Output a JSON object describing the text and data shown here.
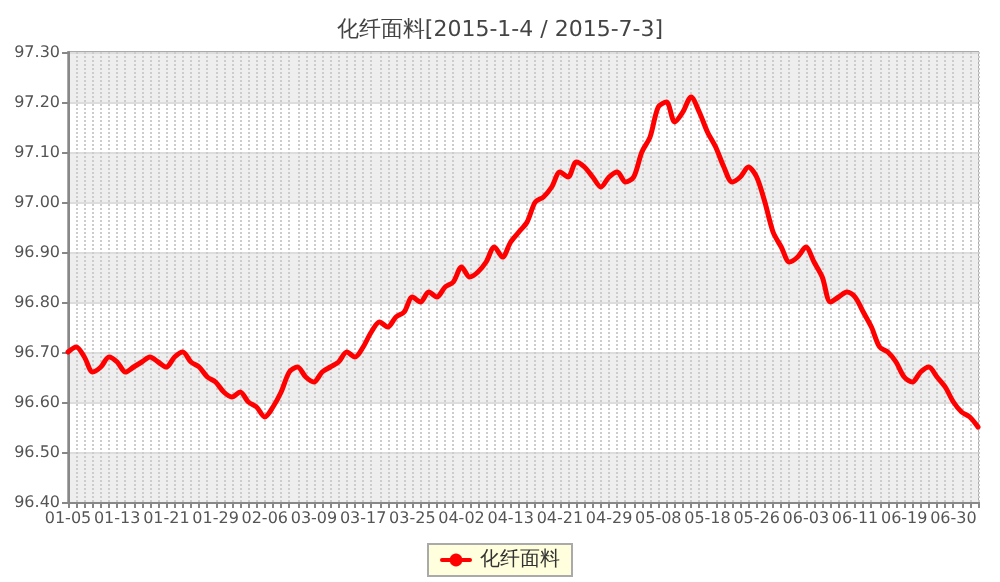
{
  "chart_data": {
    "type": "line",
    "title": "化纤面料[2015-1-4 / 2015-7-3]",
    "categories": [
      "01-05",
      null,
      null,
      null,
      null,
      null,
      "01-13",
      null,
      null,
      null,
      null,
      null,
      "01-21",
      null,
      null,
      null,
      null,
      null,
      "01-29",
      null,
      null,
      null,
      null,
      null,
      "02-06",
      null,
      null,
      null,
      null,
      null,
      "03-09",
      null,
      null,
      null,
      null,
      null,
      "03-17",
      null,
      null,
      null,
      null,
      null,
      "03-25",
      null,
      null,
      null,
      null,
      null,
      "04-02",
      null,
      null,
      null,
      null,
      null,
      "04-13",
      null,
      null,
      null,
      null,
      null,
      "04-21",
      null,
      null,
      null,
      null,
      null,
      "04-29",
      null,
      null,
      null,
      null,
      null,
      "05-08",
      null,
      null,
      null,
      null,
      null,
      "05-18",
      null,
      null,
      null,
      null,
      null,
      "05-26",
      null,
      null,
      null,
      null,
      null,
      "06-03",
      null,
      null,
      null,
      null,
      null,
      "06-11",
      null,
      null,
      null,
      null,
      null,
      "06-19",
      null,
      null,
      null,
      null,
      null,
      "06-30",
      null,
      null,
      null
    ],
    "series": [
      {
        "name": "化纤面料",
        "color": "#ff0000",
        "values": [
          96.7,
          96.71,
          96.69,
          96.66,
          96.67,
          96.69,
          96.68,
          96.66,
          96.67,
          96.68,
          96.69,
          96.68,
          96.67,
          96.69,
          96.7,
          96.68,
          96.67,
          96.65,
          96.64,
          96.62,
          96.61,
          96.62,
          96.6,
          96.59,
          96.57,
          96.59,
          96.62,
          96.66,
          96.67,
          96.65,
          96.64,
          96.66,
          96.67,
          96.68,
          96.7,
          96.69,
          96.71,
          96.74,
          96.76,
          96.75,
          96.77,
          96.78,
          96.81,
          96.8,
          96.82,
          96.81,
          96.83,
          96.84,
          96.87,
          96.85,
          96.86,
          96.88,
          96.91,
          96.89,
          96.92,
          96.94,
          96.96,
          97.0,
          97.01,
          97.03,
          97.06,
          97.05,
          97.08,
          97.07,
          97.05,
          97.03,
          97.05,
          97.06,
          97.04,
          97.05,
          97.1,
          97.13,
          97.19,
          97.2,
          97.16,
          97.18,
          97.21,
          97.18,
          97.14,
          97.11,
          97.07,
          97.04,
          97.05,
          97.07,
          97.05,
          97.0,
          96.94,
          96.91,
          96.88,
          96.89,
          96.91,
          96.88,
          96.85,
          96.8,
          96.81,
          96.82,
          96.81,
          96.78,
          96.75,
          96.71,
          96.7,
          96.68,
          96.65,
          96.64,
          96.66,
          96.67,
          96.65,
          96.63,
          96.6,
          96.58,
          96.57,
          96.55
        ]
      }
    ],
    "ylim": [
      96.4,
      97.3
    ],
    "yticks": [
      {
        "value": 96.4,
        "label": "96.40"
      },
      {
        "value": 96.5,
        "label": "96.50"
      },
      {
        "value": 96.6,
        "label": "96.60"
      },
      {
        "value": 96.7,
        "label": "96.70"
      },
      {
        "value": 96.8,
        "label": "96.80"
      },
      {
        "value": 96.9,
        "label": "96.90"
      },
      {
        "value": 97.0,
        "label": "97.00"
      },
      {
        "value": 97.1,
        "label": "97.10"
      },
      {
        "value": 97.2,
        "label": "97.20"
      },
      {
        "value": 97.3,
        "label": "97.30"
      }
    ],
    "grid": true,
    "legend": "bottom",
    "marker": "none",
    "line_style": "solid"
  }
}
